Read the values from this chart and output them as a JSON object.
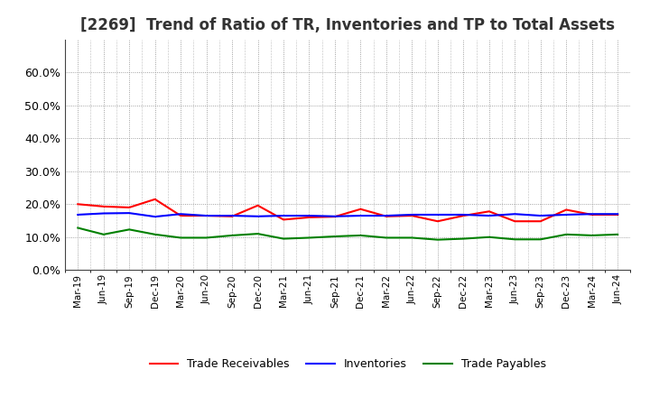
{
  "title": "[2269]  Trend of Ratio of TR, Inventories and TP to Total Assets",
  "x_labels": [
    "Mar-19",
    "Jun-19",
    "Sep-19",
    "Dec-19",
    "Mar-20",
    "Jun-20",
    "Sep-20",
    "Dec-20",
    "Mar-21",
    "Jun-21",
    "Sep-21",
    "Dec-21",
    "Mar-22",
    "Jun-22",
    "Sep-22",
    "Dec-22",
    "Mar-23",
    "Jun-23",
    "Sep-23",
    "Dec-23",
    "Mar-24",
    "Jun-24"
  ],
  "trade_receivables": [
    0.2,
    0.193,
    0.19,
    0.215,
    0.165,
    0.165,
    0.163,
    0.196,
    0.153,
    0.16,
    0.162,
    0.185,
    0.163,
    0.165,
    0.148,
    0.165,
    0.178,
    0.148,
    0.148,
    0.183,
    0.168,
    0.168
  ],
  "inventories": [
    0.168,
    0.172,
    0.173,
    0.162,
    0.17,
    0.165,
    0.165,
    0.163,
    0.165,
    0.165,
    0.163,
    0.165,
    0.165,
    0.168,
    0.168,
    0.168,
    0.165,
    0.17,
    0.165,
    0.168,
    0.17,
    0.17
  ],
  "trade_payables": [
    0.128,
    0.108,
    0.123,
    0.108,
    0.098,
    0.098,
    0.105,
    0.11,
    0.095,
    0.098,
    0.102,
    0.105,
    0.098,
    0.098,
    0.092,
    0.095,
    0.1,
    0.093,
    0.093,
    0.108,
    0.105,
    0.108
  ],
  "tr_color": "#FF0000",
  "inv_color": "#0000FF",
  "tp_color": "#008000",
  "ylim": [
    0.0,
    0.7
  ],
  "yticks": [
    0.0,
    0.1,
    0.2,
    0.3,
    0.4,
    0.5,
    0.6
  ],
  "background_color": "#FFFFFF",
  "grid_color": "#888888",
  "title_fontsize": 12,
  "legend_labels": [
    "Trade Receivables",
    "Inventories",
    "Trade Payables"
  ]
}
